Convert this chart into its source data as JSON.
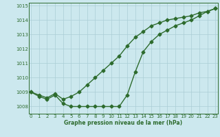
{
  "line1_upper": {
    "x": [
      0,
      1,
      2,
      3,
      4,
      5,
      6,
      7,
      8,
      9,
      10,
      11,
      12,
      13,
      14,
      15,
      16,
      17,
      18,
      19,
      20,
      21,
      22,
      23
    ],
    "y": [
      1009.0,
      1008.8,
      1008.6,
      1008.9,
      1008.5,
      1008.7,
      1009.0,
      1009.5,
      1010.0,
      1010.5,
      1011.0,
      1011.5,
      1012.2,
      1012.8,
      1013.2,
      1013.6,
      1013.8,
      1014.0,
      1014.1,
      1014.2,
      1014.3,
      1014.5,
      1014.6,
      1014.8
    ]
  },
  "line2_lower": {
    "x": [
      0,
      1,
      2,
      3,
      4,
      5,
      6,
      7,
      8,
      9,
      10,
      11,
      12,
      13,
      14,
      15,
      16,
      17,
      18,
      19,
      20,
      21,
      22,
      23
    ],
    "y": [
      1009.0,
      1008.7,
      1008.5,
      1008.8,
      1008.2,
      1008.0,
      1008.0,
      1008.0,
      1008.0,
      1008.0,
      1008.0,
      1008.0,
      1008.8,
      1010.4,
      1011.8,
      1012.5,
      1013.0,
      1013.3,
      1013.6,
      1013.8,
      1014.0,
      1014.3,
      1014.6,
      1014.8
    ]
  },
  "ylim": [
    1007.5,
    1015.2
  ],
  "xlim": [
    -0.3,
    23.3
  ],
  "yticks": [
    1008,
    1009,
    1010,
    1011,
    1012,
    1013,
    1014,
    1015
  ],
  "xticks": [
    0,
    1,
    2,
    3,
    4,
    5,
    6,
    7,
    8,
    9,
    10,
    11,
    12,
    13,
    14,
    15,
    16,
    17,
    18,
    19,
    20,
    21,
    22,
    23
  ],
  "xlabel": "Graphe pression niveau de la mer (hPa)",
  "line_color": "#2d6b2d",
  "bg_color": "#cce8ee",
  "grid_color": "#aacdd5",
  "marker": "D",
  "marker_size": 2.5,
  "linewidth": 1.0
}
